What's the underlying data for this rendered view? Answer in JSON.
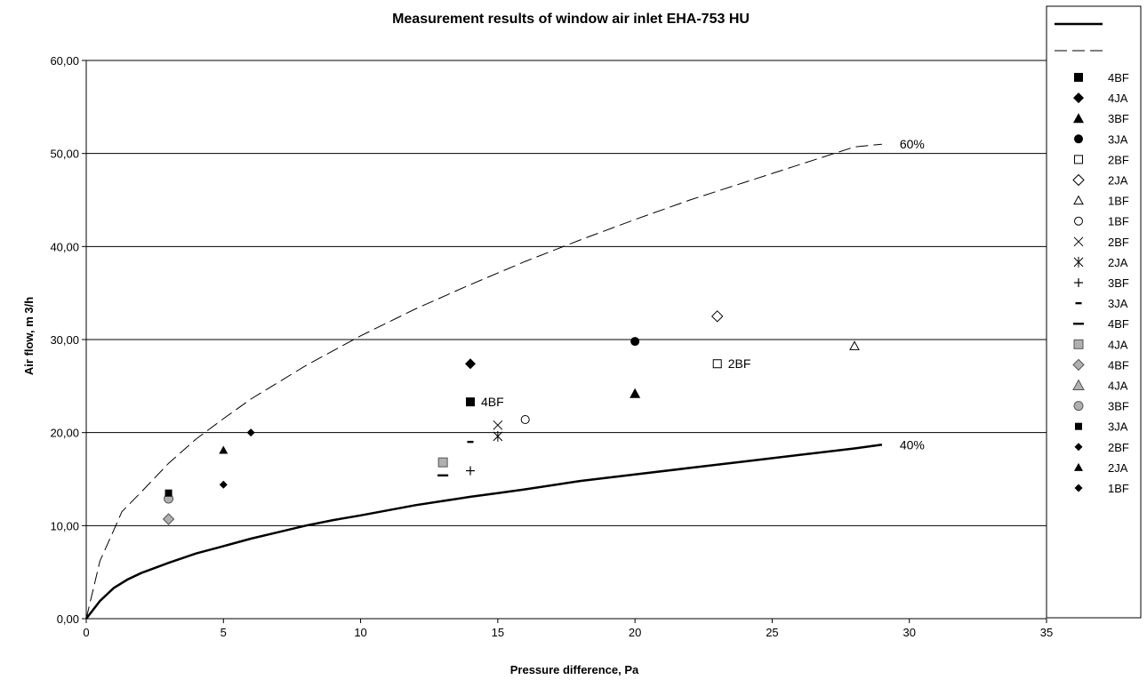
{
  "chart_data": {
    "type": "scatter",
    "title": "Measurement results of window air inlet EHA-753 HU",
    "xlabel": "Pressure difference, Pa",
    "ylabel": "Air flow, m 3/h",
    "xlim": [
      0,
      35
    ],
    "ylim": [
      0,
      60
    ],
    "x_ticks": [
      "0",
      "5",
      "10",
      "15",
      "20",
      "25",
      "30",
      "35"
    ],
    "y_ticks": [
      "0,00",
      "10,00",
      "20,00",
      "30,00",
      "40,00",
      "50,00",
      "60,00"
    ],
    "grid": "horizontal major gridlines",
    "legend_position": "right",
    "curves": [
      {
        "label": "40%",
        "style": "solid",
        "points": [
          [
            0,
            0
          ],
          [
            0.5,
            1.9
          ],
          [
            1,
            3.3
          ],
          [
            1.5,
            4.2
          ],
          [
            2,
            4.9
          ],
          [
            3,
            6.0
          ],
          [
            4,
            7.0
          ],
          [
            5,
            7.8
          ],
          [
            6,
            8.6
          ],
          [
            7,
            9.3
          ],
          [
            8,
            10.0
          ],
          [
            9,
            10.6
          ],
          [
            10,
            11.1
          ],
          [
            12,
            12.2
          ],
          [
            14,
            13.1
          ],
          [
            15,
            13.5
          ],
          [
            16,
            13.9
          ],
          [
            18,
            14.8
          ],
          [
            20,
            15.5
          ],
          [
            22,
            16.2
          ],
          [
            24,
            16.9
          ],
          [
            26,
            17.6
          ],
          [
            28,
            18.3
          ],
          [
            29,
            18.7
          ]
        ]
      },
      {
        "label": "60%",
        "style": "dashed",
        "points": [
          [
            0,
            0
          ],
          [
            0.5,
            6.2
          ],
          [
            1,
            9.5
          ],
          [
            1.3,
            11.5
          ],
          [
            2,
            13.6
          ],
          [
            3,
            16.7
          ],
          [
            4,
            19.3
          ],
          [
            5,
            21.5
          ],
          [
            6,
            23.6
          ],
          [
            7,
            25.4
          ],
          [
            8,
            27.2
          ],
          [
            9,
            28.8
          ],
          [
            10,
            30.4
          ],
          [
            12,
            33.3
          ],
          [
            14,
            35.9
          ],
          [
            16,
            38.4
          ],
          [
            18,
            40.7
          ],
          [
            20,
            42.9
          ],
          [
            22,
            45.0
          ],
          [
            24,
            46.9
          ],
          [
            26,
            48.8
          ],
          [
            28,
            50.7
          ],
          [
            29,
            51.0
          ]
        ]
      }
    ],
    "series": [
      {
        "name": "4BF",
        "marker": "square",
        "points": [
          [
            14,
            23.3
          ]
        ],
        "label": "4BF"
      },
      {
        "name": "4JA",
        "marker": "diamond",
        "points": [
          [
            14,
            27.4
          ]
        ]
      },
      {
        "name": "3BF",
        "marker": "triangle",
        "points": [
          [
            20,
            24.2
          ]
        ]
      },
      {
        "name": "3JA",
        "marker": "circle",
        "points": [
          [
            20,
            29.8
          ]
        ]
      },
      {
        "name": "2BF",
        "marker": "square-open",
        "points": [
          [
            23,
            27.4
          ]
        ],
        "label": "2BF"
      },
      {
        "name": "2JA",
        "marker": "diamond-open",
        "points": [
          [
            23,
            32.5
          ]
        ]
      },
      {
        "name": "1BF",
        "marker": "triangle-open",
        "points": [
          [
            28,
            29.3
          ]
        ]
      },
      {
        "name": "1BF",
        "marker": "circle-open",
        "points": [
          [
            16,
            21.4
          ]
        ]
      },
      {
        "name": "2BF",
        "marker": "x",
        "points": [
          [
            15,
            20.8
          ]
        ]
      },
      {
        "name": "2JA",
        "marker": "star",
        "points": [
          [
            15,
            19.6
          ]
        ]
      },
      {
        "name": "3BF",
        "marker": "plus",
        "points": [
          [
            14,
            15.9
          ]
        ]
      },
      {
        "name": "3JA",
        "marker": "dash-short",
        "points": [
          [
            14,
            19.0
          ]
        ]
      },
      {
        "name": "4BF",
        "marker": "dash-long",
        "points": [
          [
            13,
            15.4
          ]
        ]
      },
      {
        "name": "4JA",
        "marker": "square-gray",
        "points": [
          [
            13,
            16.8
          ]
        ]
      },
      {
        "name": "4BF",
        "marker": "diamond-gray",
        "points": [
          [
            3,
            10.7
          ]
        ]
      },
      {
        "name": "4JA",
        "marker": "triangle-gray",
        "points": []
      },
      {
        "name": "3BF",
        "marker": "circle-gray",
        "points": [
          [
            3,
            12.9
          ]
        ]
      },
      {
        "name": "3JA",
        "marker": "square-small",
        "points": [
          [
            3,
            13.5
          ]
        ]
      },
      {
        "name": "2BF",
        "marker": "diamond-small",
        "points": [
          [
            5,
            14.4
          ]
        ]
      },
      {
        "name": "2JA",
        "marker": "triangle-small",
        "points": [
          [
            5,
            18.1
          ]
        ]
      },
      {
        "name": "1BF",
        "marker": "diamond-small",
        "points": [
          [
            6,
            20.0
          ]
        ]
      }
    ]
  }
}
